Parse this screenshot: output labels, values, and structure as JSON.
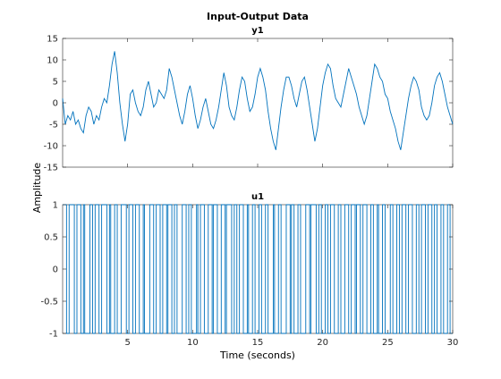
{
  "figure": {
    "title": "Input-Output Data",
    "xlabel": "Time (seconds)",
    "ylabel": "Amplitude"
  },
  "chart_data": [
    {
      "type": "line",
      "title": "y1",
      "series": [
        {
          "name": "y1",
          "color": "#0072BD"
        }
      ],
      "xlim": [
        0,
        30
      ],
      "ylim": [
        -15,
        15
      ],
      "xticks": [
        5,
        10,
        15,
        20,
        25,
        30
      ],
      "xtick_labels": [],
      "yticks": [
        -15,
        -10,
        -5,
        0,
        5,
        10,
        15
      ],
      "ytick_labels": [
        "-15",
        "-10",
        "-5",
        "0",
        "5",
        "10",
        "15"
      ],
      "grid": false,
      "x": [
        0.0,
        0.2,
        0.4,
        0.6,
        0.8,
        1.0,
        1.2,
        1.4,
        1.6,
        1.8,
        2.0,
        2.2,
        2.4,
        2.6,
        2.8,
        3.0,
        3.2,
        3.4,
        3.6,
        3.8,
        4.0,
        4.2,
        4.4,
        4.6,
        4.8,
        5.0,
        5.2,
        5.4,
        5.6,
        5.8,
        6.0,
        6.2,
        6.4,
        6.6,
        6.8,
        7.0,
        7.2,
        7.4,
        7.6,
        7.8,
        8.0,
        8.2,
        8.4,
        8.6,
        8.8,
        9.0,
        9.2,
        9.4,
        9.6,
        9.8,
        10.0,
        10.2,
        10.4,
        10.6,
        10.8,
        11.0,
        11.2,
        11.4,
        11.6,
        11.8,
        12.0,
        12.2,
        12.4,
        12.6,
        12.8,
        13.0,
        13.2,
        13.4,
        13.6,
        13.8,
        14.0,
        14.2,
        14.4,
        14.6,
        14.8,
        15.0,
        15.2,
        15.4,
        15.6,
        15.8,
        16.0,
        16.2,
        16.4,
        16.6,
        16.8,
        17.0,
        17.2,
        17.4,
        17.6,
        17.8,
        18.0,
        18.2,
        18.4,
        18.6,
        18.8,
        19.0,
        19.2,
        19.4,
        19.6,
        19.8,
        20.0,
        20.2,
        20.4,
        20.6,
        20.8,
        21.0,
        21.2,
        21.4,
        21.6,
        21.8,
        22.0,
        22.2,
        22.4,
        22.6,
        22.8,
        23.0,
        23.2,
        23.4,
        23.6,
        23.8,
        24.0,
        24.2,
        24.4,
        24.6,
        24.8,
        25.0,
        25.2,
        25.4,
        25.6,
        25.8,
        26.0,
        26.2,
        26.4,
        26.6,
        26.8,
        27.0,
        27.2,
        27.4,
        27.6,
        27.8,
        28.0,
        28.2,
        28.4,
        28.6,
        28.8,
        29.0,
        29.2,
        29.4,
        29.6,
        29.8,
        30.0
      ],
      "y": [
        1,
        -5,
        -3,
        -4,
        -2,
        -5,
        -4,
        -6,
        -7,
        -3,
        -1,
        -2,
        -5,
        -3,
        -4,
        -1,
        1,
        0,
        4,
        9,
        12,
        7,
        0,
        -5,
        -9,
        -5,
        2,
        3,
        0,
        -2,
        -3,
        -1,
        3,
        5,
        2,
        -1,
        0,
        3,
        2,
        1,
        3,
        8,
        6,
        3,
        0,
        -3,
        -5,
        -2,
        2,
        4,
        1,
        -3,
        -6,
        -4,
        -1,
        1,
        -2,
        -5,
        -6,
        -4,
        -1,
        3,
        7,
        4,
        -1,
        -3,
        -4,
        -1,
        3,
        6,
        5,
        1,
        -2,
        -1,
        2,
        6,
        8,
        6,
        3,
        -2,
        -6,
        -9,
        -11,
        -6,
        -1,
        3,
        6,
        6,
        4,
        1,
        -1,
        2,
        5,
        6,
        3,
        -1,
        -5,
        -9,
        -6,
        -1,
        4,
        7,
        9,
        8,
        4,
        1,
        0,
        -1,
        2,
        5,
        8,
        6,
        4,
        2,
        -1,
        -3,
        -5,
        -3,
        1,
        5,
        9,
        8,
        6,
        5,
        2,
        1,
        -2,
        -4,
        -6,
        -9,
        -11,
        -7,
        -3,
        1,
        4,
        6,
        5,
        3,
        -1,
        -3,
        -4,
        -3,
        0,
        4,
        6,
        7,
        5,
        2,
        -1,
        -3,
        -5
      ]
    },
    {
      "type": "line",
      "title": "u1",
      "series": [
        {
          "name": "u1",
          "color": "#0072BD"
        }
      ],
      "xlim": [
        0,
        30
      ],
      "ylim": [
        -1,
        1
      ],
      "xticks": [
        5,
        10,
        15,
        20,
        25,
        30
      ],
      "xtick_labels": [
        "5",
        "10",
        "15",
        "20",
        "25",
        "30"
      ],
      "yticks": [
        -1,
        -0.5,
        0,
        0.5,
        1
      ],
      "ytick_labels": [
        "-1",
        "-0.5",
        "0",
        "0.5",
        "1"
      ],
      "grid": false,
      "switch_times": [
        0.3,
        0.5,
        0.9,
        1.1,
        1.4,
        1.6,
        1.7,
        2.1,
        2.3,
        2.5,
        2.8,
        3.0,
        3.4,
        3.6,
        3.7,
        4.0,
        4.2,
        4.5,
        4.9,
        5.1,
        5.4,
        5.6,
        5.9,
        6.2,
        6.3,
        6.7,
        7.0,
        7.2,
        7.5,
        7.7,
        8.0,
        8.1,
        8.4,
        8.6,
        8.8,
        9.2,
        9.5,
        9.7,
        9.9,
        10.3,
        10.4,
        10.6,
        10.9,
        11.2,
        11.5,
        11.6,
        11.9,
        12.2,
        12.5,
        12.6,
        13.0,
        13.2,
        13.4,
        13.6,
        13.9,
        14.2,
        14.3,
        14.6,
        14.8,
        15.1,
        15.3,
        15.6,
        15.8,
        16.2,
        16.3,
        16.6,
        16.8,
        17.2,
        17.5,
        17.6,
        17.8,
        18.1,
        18.3,
        18.7,
        19.0,
        19.1,
        19.5,
        19.7,
        19.9,
        20.2,
        20.4,
        20.6,
        20.9,
        21.2,
        21.4,
        21.7,
        22.0,
        22.2,
        22.5,
        22.6,
        22.9,
        23.1,
        23.4,
        23.7,
        23.9,
        24.2,
        24.3,
        24.6,
        24.8,
        25.2,
        25.4,
        25.7,
        25.9,
        26.1,
        26.4,
        26.6,
        26.9,
        27.2,
        27.4,
        27.6,
        27.9,
        28.1,
        28.4,
        28.6,
        28.8,
        29.1,
        29.3,
        29.6,
        29.8
      ],
      "initial_value": 1
    }
  ]
}
